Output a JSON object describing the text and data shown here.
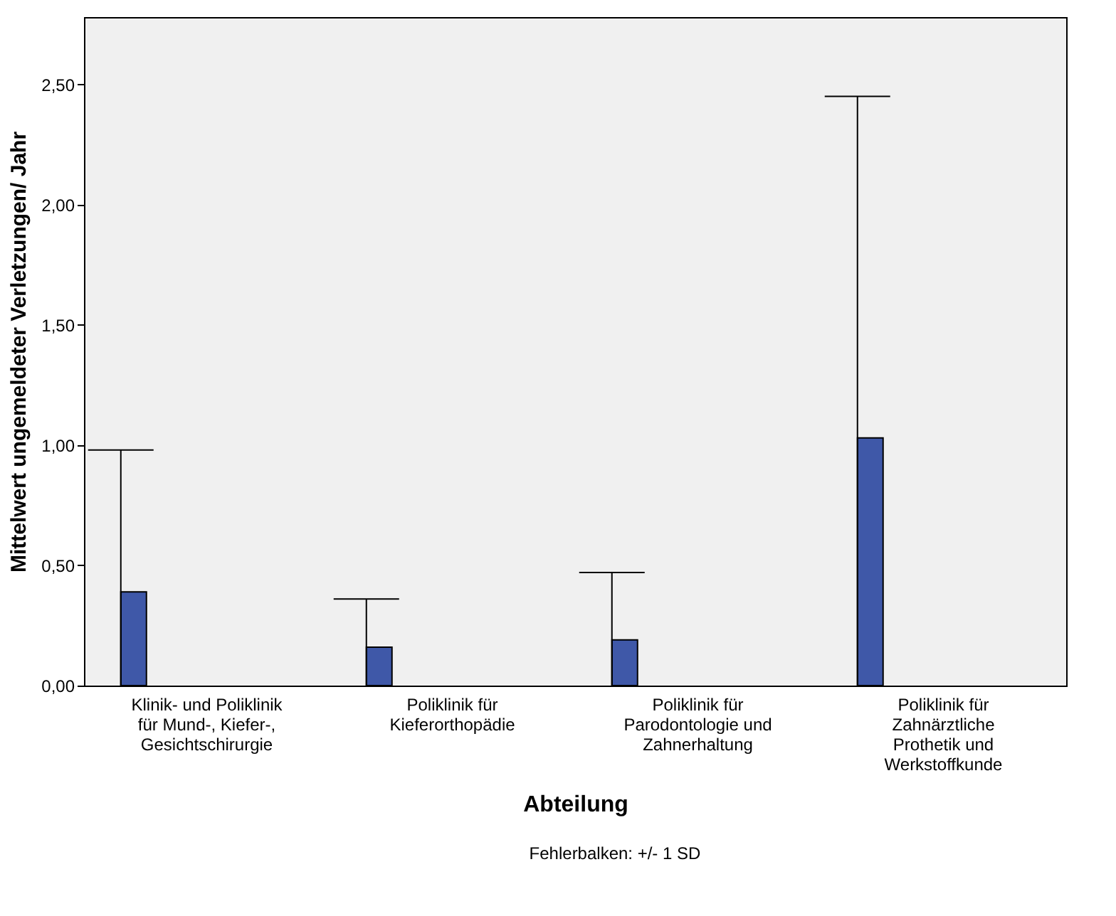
{
  "chart_data": {
    "type": "bar",
    "xlabel": "Abteilung",
    "ylabel": "Mittelwert ungemeldeter Verletzungen/ Jahr",
    "categories": [
      "Klinik- und Poliklinik für Mund-, Kiefer-, Gesichtschirurgie",
      "Poliklinik für Kieferorthopädie",
      "Poliklinik für Parodontologie und Zahnerhaltung",
      "Poliklinik für Zahnärztliche Prothetik und Werkstoffkunde"
    ],
    "values": [
      0.39,
      0.16,
      0.19,
      1.03
    ],
    "errors": [
      [
        0,
        0.98
      ],
      [
        0,
        0.36
      ],
      [
        0,
        0.47
      ],
      [
        0,
        2.45
      ]
    ],
    "color": "#3f58a8",
    "ylim": [
      0,
      2.78
    ],
    "yticks": [
      {
        "value": 0,
        "label": "0,00"
      },
      {
        "value": 0.5,
        "label": "0,50"
      },
      {
        "value": 1,
        "label": "1,00"
      },
      {
        "value": 1.5,
        "label": "1,50"
      },
      {
        "value": 2,
        "label": "2,00"
      },
      {
        "value": 2.5,
        "label": "2,50"
      }
    ],
    "grid": false,
    "annotations": [
      "Fehlerbalken: +/- 1 SD"
    ]
  }
}
